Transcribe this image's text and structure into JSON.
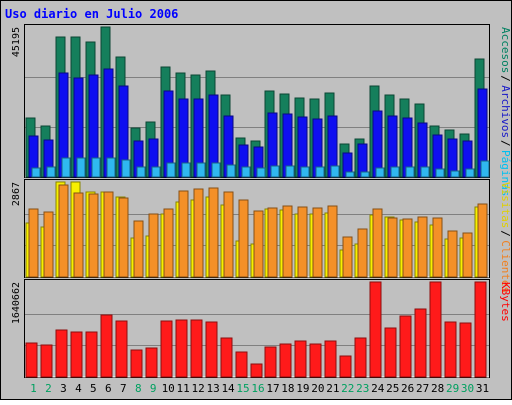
{
  "chart_data": {
    "type": "bar",
    "title": "Uso diario en Julio 2006",
    "categories": [
      "1",
      "2",
      "3",
      "4",
      "5",
      "6",
      "7",
      "8",
      "9",
      "10",
      "11",
      "12",
      "13",
      "14",
      "15",
      "16",
      "17",
      "18",
      "19",
      "20",
      "21",
      "22",
      "23",
      "24",
      "25",
      "26",
      "27",
      "28",
      "29",
      "30",
      "31"
    ],
    "weekend_days": [
      "1",
      "2",
      "8",
      "9",
      "15",
      "16",
      "22",
      "23",
      "29",
      "30"
    ],
    "panels": [
      {
        "name": "visits-panel",
        "ymax_label": "45195",
        "ymax": 45195,
        "axis_labels": [
          {
            "text": "Accesos",
            "color": "#008060"
          },
          {
            "text": "Archivos",
            "color": "#1818c8"
          },
          {
            "text": "Páginas",
            "color": "#00c0f0"
          }
        ],
        "series": [
          {
            "name": "Accesos",
            "color": "#157f5c",
            "values": [
              17800,
              15300,
              42200,
              42200,
              40800,
              45400,
              36100,
              14900,
              16500,
              33200,
              31200,
              30700,
              31900,
              24600,
              11700,
              10800,
              25800,
              25100,
              23900,
              23600,
              25200,
              9800,
              11500,
              27500,
              24800,
              23600,
              21900,
              15500,
              14100,
              12900,
              35700
            ]
          },
          {
            "name": "Archivos",
            "color": "#0f0ff0",
            "values": [
              12400,
              11100,
              31400,
              29800,
              30800,
              32600,
              27500,
              10800,
              11400,
              26000,
              23500,
              23400,
              24600,
              18300,
              9600,
              8900,
              19200,
              19100,
              18000,
              17600,
              18400,
              7200,
              9900,
              19800,
              18400,
              17700,
              16200,
              12800,
              11500,
              10800,
              26500
            ]
          },
          {
            "name": "Páginas",
            "color": "#2fb8f0",
            "values": [
              2800,
              2900,
              5600,
              5800,
              5700,
              5600,
              5200,
              2900,
              3000,
              4200,
              4300,
              4300,
              4300,
              3600,
              3000,
              2600,
              3300,
              3400,
              3100,
              3100,
              3200,
              1500,
              1600,
              2800,
              3100,
              3100,
              2900,
              2500,
              1700,
              2500,
              4800
            ]
          }
        ]
      },
      {
        "name": "clients-panel",
        "ymax_label": "2867",
        "ymax": 2867,
        "axis_labels": [
          {
            "text": "Visitas",
            "color": "#e0d000"
          },
          {
            "text": "Clientes",
            "color": "#f08020"
          }
        ],
        "series": [
          {
            "name": "Visitas",
            "color": "#f8f000",
            "values": [
              1640,
              1510,
              2870,
              2860,
              2580,
              2570,
              2400,
              1190,
              1230,
              1910,
              2270,
              2320,
              2420,
              2180,
              1090,
              1000,
              2040,
              2030,
              1890,
              1890,
              1940,
              820,
              990,
              1860,
              1800,
              1720,
              1670,
              1570,
              1150,
              1180,
              2120
            ]
          },
          {
            "name": "Clientes",
            "color": "#f49028",
            "values": [
              2060,
              1960,
              2790,
              2550,
              2510,
              2570,
              2390,
              1700,
              1890,
              2050,
              2600,
              2670,
              2700,
              2560,
              2330,
              1990,
              2080,
              2130,
              2120,
              2090,
              2150,
              1220,
              1460,
              2040,
              1790,
              1740,
              1800,
              1780,
              1380,
              1340,
              2190
            ]
          }
        ]
      },
      {
        "name": "kbytes-panel",
        "ymax_label": "1640662",
        "ymax": 1640662,
        "axis_labels": [
          {
            "text": "KBytes",
            "color": "#ff0000"
          }
        ],
        "series": [
          {
            "name": "KBytes",
            "color": "#ff1a1a",
            "values": [
              580000,
              545000,
              820000,
              780000,
              780000,
              1070000,
              970000,
              460000,
              505000,
              970000,
              985000,
              990000,
              950000,
              680000,
              430000,
              225000,
              520000,
              570000,
              620000,
              570000,
              630000,
              370000,
              670000,
              1640000,
              850000,
              1050000,
              1180000,
              1670000,
              955000,
              925000,
              1640000
            ]
          }
        ]
      }
    ]
  }
}
